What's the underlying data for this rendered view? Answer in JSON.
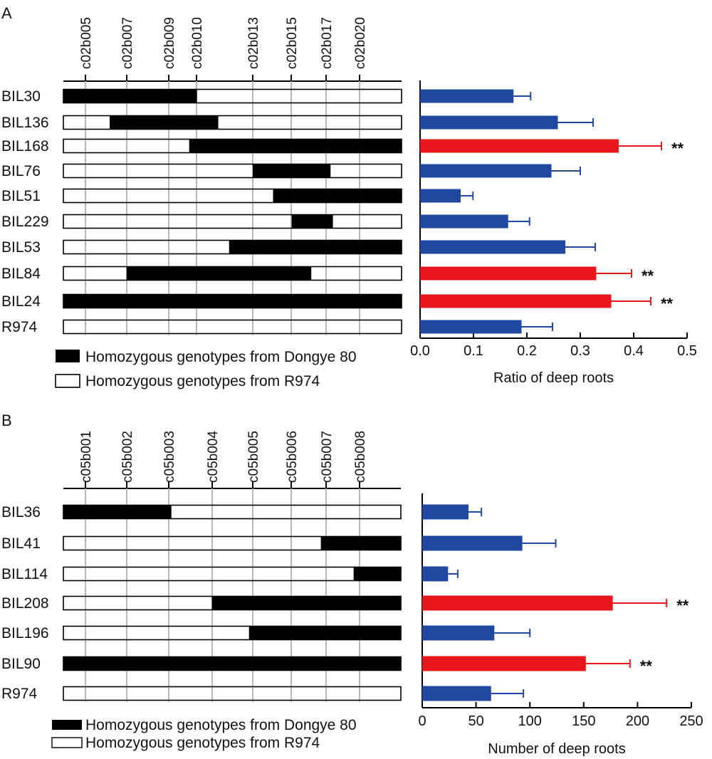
{
  "colors": {
    "normal": "#2048a0",
    "significant": "#e8171c",
    "donor": "#000000",
    "recipient": "#ffffff"
  },
  "legend": {
    "donor": "Homozygous genotypes from Dongye 80",
    "recipient": "Homozygous genotypes from R974"
  },
  "panels": [
    {
      "label": "A",
      "markers": [
        "c02b005",
        "c02b007",
        "c02b009",
        "c02b010",
        "c02b013",
        "c02b015",
        "c02b017",
        "c02b020"
      ],
      "rows": [
        {
          "name": "BIL30",
          "segment": [
            0.0,
            0.395
          ]
        },
        {
          "name": "BIL136",
          "segment": [
            0.137,
            0.458
          ]
        },
        {
          "name": "BIL168",
          "segment": [
            0.372,
            1.0
          ]
        },
        {
          "name": "BIL76",
          "segment": [
            0.56,
            0.79
          ]
        },
        {
          "name": "BIL51",
          "segment": [
            0.62,
            1.0
          ]
        },
        {
          "name": "BIL229",
          "segment": [
            0.675,
            0.797
          ]
        },
        {
          "name": "BIL53",
          "segment": [
            0.49,
            1.0
          ]
        },
        {
          "name": "BIL84",
          "segment": [
            0.187,
            0.733
          ]
        },
        {
          "name": "BIL24",
          "segment": [
            0.0,
            1.0
          ]
        },
        {
          "name": "R974",
          "segment": null
        }
      ],
      "chart_data": {
        "type": "bar",
        "orientation": "horizontal",
        "xlabel": "Ratio of deep roots",
        "xlim": [
          0,
          0.5
        ],
        "ticks": [
          "0.0",
          "0.1",
          "0.2",
          "0.3",
          "0.4",
          "0.5"
        ],
        "tick_values": [
          0,
          0.1,
          0.2,
          0.3,
          0.4,
          0.5
        ],
        "categories": [
          "BIL30",
          "BIL136",
          "BIL168",
          "BIL76",
          "BIL51",
          "BIL229",
          "BIL53",
          "BIL84",
          "BIL24",
          "R974"
        ],
        "values": [
          0.175,
          0.258,
          0.372,
          0.246,
          0.076,
          0.165,
          0.272,
          0.33,
          0.358,
          0.19
        ],
        "errors": [
          0.032,
          0.066,
          0.08,
          0.054,
          0.023,
          0.04,
          0.056,
          0.066,
          0.074,
          0.058
        ],
        "significance": [
          "",
          "",
          "**",
          "",
          "",
          "",
          "",
          "**",
          "**",
          ""
        ]
      }
    },
    {
      "label": "B",
      "markers": [
        "c05b001",
        "c05b002",
        "c05b003",
        "c05b004",
        "c05b005",
        "c05b006",
        "c05b007",
        "c05b008"
      ],
      "rows": [
        {
          "name": "BIL36",
          "segment": [
            0.0,
            0.32
          ]
        },
        {
          "name": "BIL41",
          "segment": [
            0.763,
            1.0
          ]
        },
        {
          "name": "BIL114",
          "segment": [
            0.86,
            1.0
          ]
        },
        {
          "name": "BIL208",
          "segment": [
            0.44,
            1.0
          ]
        },
        {
          "name": "BIL196",
          "segment": [
            0.55,
            1.0
          ]
        },
        {
          "name": "BIL90",
          "segment": [
            0.0,
            1.0
          ]
        },
        {
          "name": "R974",
          "segment": null
        }
      ],
      "chart_data": {
        "type": "bar",
        "orientation": "horizontal",
        "xlabel": "Number of deep roots",
        "xlim": [
          0,
          250
        ],
        "ticks": [
          "0",
          "50",
          "100",
          "150",
          "200",
          "250"
        ],
        "tick_values": [
          0,
          50,
          100,
          150,
          200,
          250
        ],
        "categories": [
          "BIL36",
          "BIL41",
          "BIL114",
          "BIL208",
          "BIL196",
          "BIL90",
          "R974"
        ],
        "values": [
          43,
          93,
          24,
          177,
          67,
          152,
          64
        ],
        "errors": [
          12,
          31,
          9,
          50,
          33,
          41,
          30
        ],
        "significance": [
          "",
          "",
          "",
          "**",
          "",
          "**",
          ""
        ]
      }
    }
  ]
}
